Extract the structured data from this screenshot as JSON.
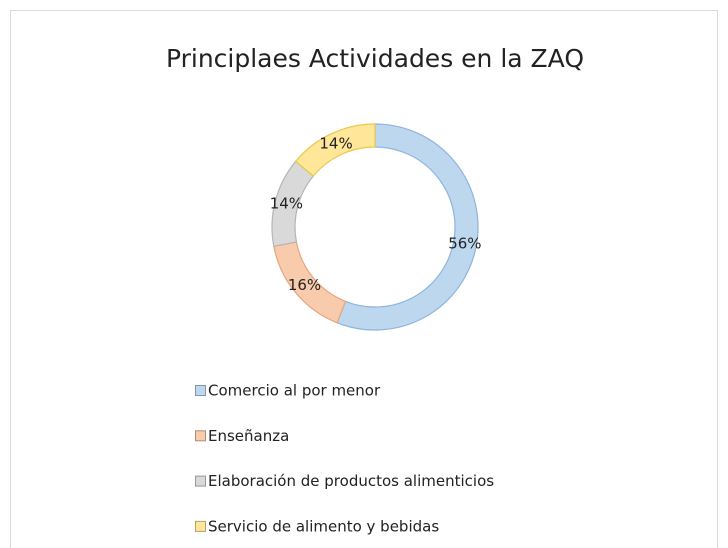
{
  "chart_data": {
    "type": "donut",
    "title": "Principlaes Actividades en la ZAQ",
    "categories": [
      "Comercio al por menor",
      "Enseñanza",
      "Elaboración de productos alimenticios",
      "Servicio de alimento y bebidas"
    ],
    "values": [
      56,
      16,
      14,
      14
    ],
    "value_labels": [
      "56%",
      "16%",
      "14%",
      "14%"
    ],
    "colors": [
      "#bdd7ee",
      "#f8cbad",
      "#d9d9d9",
      "#ffe699"
    ],
    "legend": "bottom"
  }
}
